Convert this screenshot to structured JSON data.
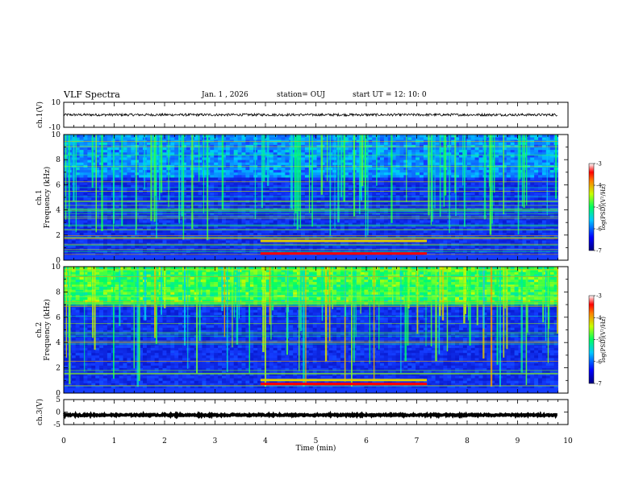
{
  "header": {
    "title": "VLF Spectra",
    "date": "Jan.  1  , 2026",
    "station": "station= OUJ",
    "start": "start  UT  =   12: 10: 0"
  },
  "chart_data": {
    "type": "heatmap",
    "title": "VLF Spectra",
    "xlabel": "Time  (min)",
    "x_ticks": [
      "0",
      "1",
      "2",
      "3",
      "4",
      "5",
      "6",
      "7",
      "8",
      "9",
      "10"
    ],
    "xlim": [
      0,
      10
    ],
    "data_end_min": 9.8,
    "panels": [
      {
        "id": "ch1-waveform",
        "type": "line",
        "ylabel": "ch.1(V)",
        "ylim": [
          -10,
          10
        ],
        "y_ticks": [
          "10",
          "-10"
        ],
        "baseline": 0,
        "amplitude": 1
      },
      {
        "id": "ch1-spectrogram",
        "type": "heatmap",
        "channel_label": "ch.1",
        "ylabel": "Frequency  (kHz)",
        "ylim": [
          0,
          10
        ],
        "y_ticks": [
          "0",
          "2",
          "4",
          "6",
          "8",
          "10"
        ],
        "colorbar": {
          "label": "log(PSD)(V²/Hz)",
          "range": [
            -7,
            -3
          ],
          "ticks": [
            "-3",
            "-4",
            "-5",
            "-6",
            "-7"
          ]
        }
      },
      {
        "id": "ch2-spectrogram",
        "type": "heatmap",
        "channel_label": "ch.2",
        "ylabel": "Frequency  (kHz)",
        "ylim": [
          0,
          10
        ],
        "y_ticks": [
          "0",
          "2",
          "4",
          "6",
          "8",
          "10"
        ],
        "colorbar": {
          "label": "log(PSD)(V²/Hz)",
          "range": [
            -7,
            -3
          ],
          "ticks": [
            "-3",
            "-4",
            "-5",
            "-6",
            "-7"
          ]
        }
      },
      {
        "id": "ch3-waveform",
        "type": "line",
        "ylabel": "ch.3(V)",
        "ylim": [
          -5,
          5
        ],
        "y_ticks": [
          "5",
          "0",
          "-5"
        ],
        "baseline": -1.2,
        "amplitude": 0.3
      }
    ],
    "features": {
      "enhanced_band_start_min": 3.9,
      "enhanced_band_end_min": 7.2,
      "ch1_band_khz": [
        1.5,
        0.5
      ],
      "ch2_band_khz": [
        1.0,
        0.7
      ],
      "ch1_hiss_floor_khz": 6.5,
      "ch2_hiss_floor_khz": 7.0
    }
  }
}
